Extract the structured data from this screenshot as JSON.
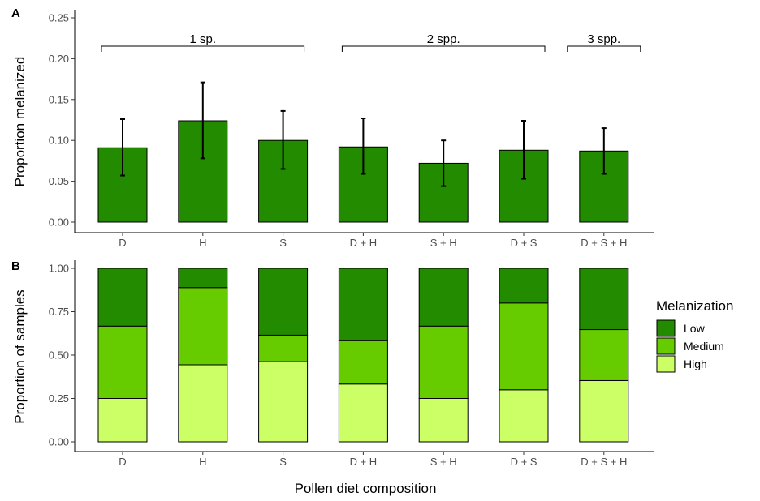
{
  "chart_data": [
    {
      "panel": "A",
      "type": "bar",
      "categories": [
        "D",
        "H",
        "S",
        "D + H",
        "S + H",
        "D + S",
        "D + S + H"
      ],
      "values": [
        0.091,
        0.124,
        0.1,
        0.092,
        0.072,
        0.088,
        0.087
      ],
      "error_low": [
        0.057,
        0.078,
        0.065,
        0.059,
        0.044,
        0.053,
        0.059
      ],
      "error_high": [
        0.126,
        0.171,
        0.136,
        0.127,
        0.1,
        0.124,
        0.115
      ],
      "ylabel": "Proportion melanized",
      "ylim": [
        0,
        0.26
      ],
      "yticks": [
        "0.00",
        "0.05",
        "0.10",
        "0.15",
        "0.20",
        "0.25"
      ],
      "color": "#238b00",
      "group_brackets": [
        {
          "label": "1 sp.",
          "from": "D",
          "to": "S"
        },
        {
          "label": "2 spp.",
          "from": "D + H",
          "to": "D + S"
        },
        {
          "label": "3 spp.",
          "from": "D + S + H",
          "to": "D + S + H"
        }
      ],
      "grid": false
    },
    {
      "panel": "B",
      "type": "bar",
      "stacked": true,
      "categories": [
        "D",
        "H",
        "S",
        "D + H",
        "S + H",
        "D + S",
        "D + S + H"
      ],
      "series": [
        {
          "name": "High",
          "values": [
            0.25,
            0.444,
            0.462,
            0.333,
            0.25,
            0.3,
            0.353
          ],
          "color": "#ccff66"
        },
        {
          "name": "Medium",
          "values": [
            0.417,
            0.445,
            0.153,
            0.25,
            0.417,
            0.5,
            0.294
          ],
          "color": "#66cc00"
        },
        {
          "name": "Low",
          "values": [
            0.333,
            0.111,
            0.385,
            0.417,
            0.333,
            0.2,
            0.353
          ],
          "color": "#238b00"
        }
      ],
      "xlabel": "Pollen diet composition",
      "ylabel": "Proportion of samples",
      "ylim": [
        0,
        1.03
      ],
      "yticks": [
        "0.00",
        "0.25",
        "0.50",
        "0.75",
        "1.00"
      ],
      "legend": {
        "title": "Melanization",
        "entries": [
          "Low",
          "Medium",
          "High"
        ],
        "placement": "right"
      },
      "grid": false
    }
  ]
}
